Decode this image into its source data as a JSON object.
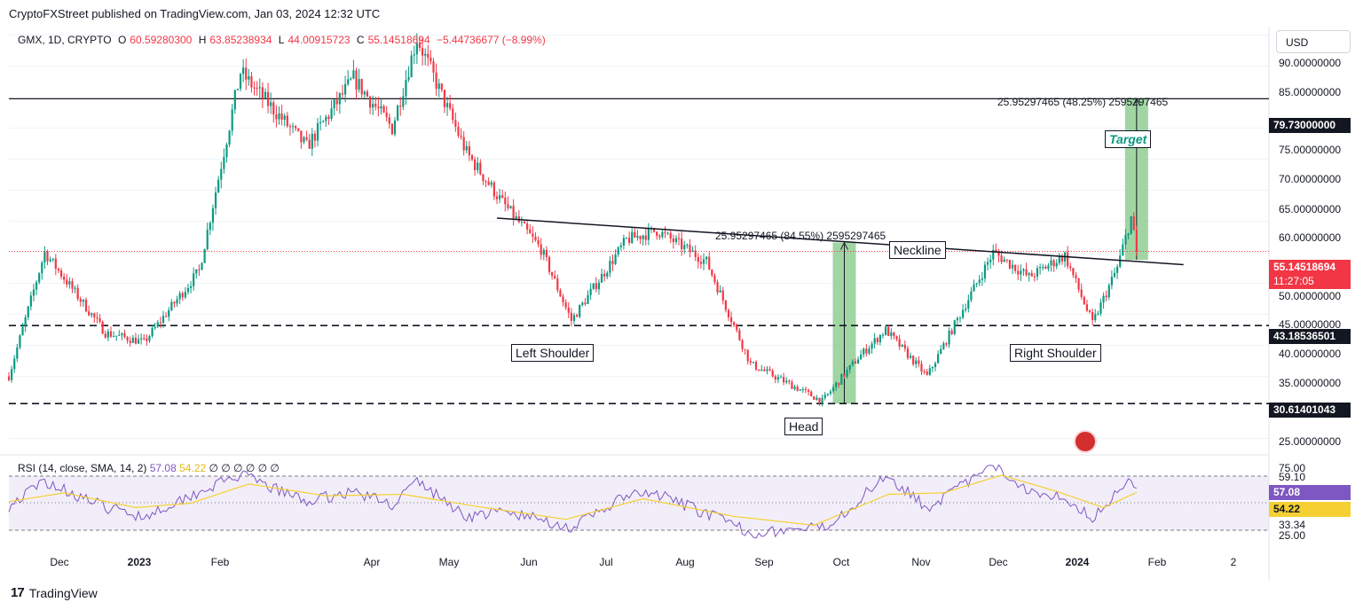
{
  "publisher": "CryptoFXStreet published on TradingView.com, Jan 03, 2024 12:32 UTC",
  "symbol": "GMX, 1D, CRYPTO",
  "ohlc": {
    "o_label": "O",
    "o": "60.59280300",
    "h_label": "H",
    "h": "63.85238934",
    "l_label": "L",
    "l": "44.00915723",
    "c_label": "C",
    "c": "55.14518694",
    "change": "−5.44736677 (−8.99%)"
  },
  "currency": "USD",
  "rsi_legend": {
    "label": "RSI (14, close, SMA, 14, 2)",
    "rsi": "57.08",
    "sma": "54.22",
    "zeros": "∅ ∅ ∅ ∅ ∅ ∅"
  },
  "price_axis": [
    "90.00000000",
    "85.00000000",
    "75.00000000",
    "70.00000000",
    "65.00000000",
    "60.00000000",
    "50.00000000",
    "45.00000000",
    "40.00000000",
    "35.00000000",
    "25.00000000"
  ],
  "price_tags": {
    "target": "79.73000000",
    "last": "55.14518694",
    "countdown": "11:27:05",
    "support_upper": "43.18536501",
    "support_lower": "30.61401043"
  },
  "rsi_axis": [
    "75.00",
    "59.10",
    "33.34",
    "25.00"
  ],
  "rsi_tags": {
    "rsi": "57.08",
    "sma": "54.22"
  },
  "time_axis": [
    {
      "label": "Dec",
      "bold": false
    },
    {
      "label": "2023",
      "bold": true
    },
    {
      "label": "Feb",
      "bold": false
    },
    {
      "label": "Apr",
      "bold": false
    },
    {
      "label": "May",
      "bold": false
    },
    {
      "label": "Jun",
      "bold": false
    },
    {
      "label": "Jul",
      "bold": false
    },
    {
      "label": "Aug",
      "bold": false
    },
    {
      "label": "Sep",
      "bold": false
    },
    {
      "label": "Oct",
      "bold": false
    },
    {
      "label": "Nov",
      "bold": false
    },
    {
      "label": "Dec",
      "bold": false
    },
    {
      "label": "2024",
      "bold": true
    },
    {
      "label": "Feb",
      "bold": false
    },
    {
      "label": "2",
      "bold": false
    }
  ],
  "annotations": {
    "neckline": "Neckline",
    "left_shoulder": "Left Shoulder",
    "head": "Head",
    "right_shoulder": "Right Shoulder",
    "target": "Target",
    "measure_head": "25.95297465 (84.55%) 2595297465",
    "measure_target": "25.95297465 (48.25%) 2595297465"
  },
  "footer": {
    "brand": "TradingView",
    "logo": "17"
  },
  "colors": {
    "up": "#089981",
    "down": "#f23645",
    "rsi": "#7e57c2",
    "sma": "#f5d033",
    "projection": "#81c784"
  },
  "chart_data": [
    {
      "type": "candlestick",
      "title": "GMX, 1D, CRYPTO",
      "x_range": [
        "2022-11-20",
        "2024-02-20"
      ],
      "y_range": [
        22.5,
        92.5
      ],
      "levels": [
        {
          "price": 79.73,
          "style": "solid"
        },
        {
          "price": 43.18536501,
          "style": "dashed"
        },
        {
          "price": 30.61401043,
          "style": "dashed"
        }
      ],
      "neckline": {
        "from": [
          "2023-05-16",
          60.5
        ],
        "to": [
          "2024-01-20",
          53.0
        ]
      },
      "measured_moves": [
        {
          "from_date": "2023-09-19",
          "low": 30.61,
          "high": 56.56,
          "change": 25.95297465,
          "percent": 84.55
        },
        {
          "from_date": "2024-01-03",
          "low": 53.78,
          "high": 79.73,
          "change": 25.95297465,
          "percent": 48.25
        }
      ],
      "key_points": [
        {
          "date": "2022-11-20",
          "close": 35.0
        },
        {
          "date": "2022-12-03",
          "close": 55.0
        },
        {
          "date": "2022-12-25",
          "close": 42.0
        },
        {
          "date": "2023-01-08",
          "close": 40.5
        },
        {
          "date": "2023-01-28",
          "close": 52.0
        },
        {
          "date": "2023-02-12",
          "close": 84.0
        },
        {
          "date": "2023-03-08",
          "close": 72.0
        },
        {
          "date": "2023-03-25",
          "close": 83.0
        },
        {
          "date": "2023-04-08",
          "close": 75.0
        },
        {
          "date": "2023-04-17",
          "close": 89.5
        },
        {
          "date": "2023-05-05",
          "close": 71.0
        },
        {
          "date": "2023-05-18",
          "close": 63.0
        },
        {
          "date": "2023-06-01",
          "close": 55.5
        },
        {
          "date": "2023-06-12",
          "close": 44.0
        },
        {
          "date": "2023-07-02",
          "close": 57.0
        },
        {
          "date": "2023-07-13",
          "close": 58.5
        },
        {
          "date": "2023-07-31",
          "close": 53.5
        },
        {
          "date": "2023-08-16",
          "close": 37.0
        },
        {
          "date": "2023-09-11",
          "close": 31.0
        },
        {
          "date": "2023-09-24",
          "close": 38.0
        },
        {
          "date": "2023-10-04",
          "close": 42.5
        },
        {
          "date": "2023-10-19",
          "close": 35.0
        },
        {
          "date": "2023-11-12",
          "close": 55.0
        },
        {
          "date": "2023-11-25",
          "close": 51.0
        },
        {
          "date": "2023-12-08",
          "close": 54.5
        },
        {
          "date": "2023-12-18",
          "close": 43.5
        },
        {
          "date": "2023-12-27",
          "close": 52.5
        },
        {
          "date": "2024-01-01",
          "close": 60.6
        },
        {
          "date": "2024-01-03",
          "close": 55.15
        }
      ]
    },
    {
      "type": "line",
      "title": "RSI (14, close, SMA, 14, 2)",
      "y_range": [
        25,
        75
      ],
      "band": [
        33.34,
        59.1
      ],
      "series": [
        {
          "name": "RSI",
          "key_points": [
            {
              "date": "2022-11-20",
              "value": 45
            },
            {
              "date": "2022-12-03",
              "value": 62
            },
            {
              "date": "2022-12-25",
              "value": 44
            },
            {
              "date": "2023-01-08",
              "value": 38
            },
            {
              "date": "2023-01-28",
              "value": 55
            },
            {
              "date": "2023-02-12",
              "value": 66
            },
            {
              "date": "2023-03-08",
              "value": 48
            },
            {
              "date": "2023-03-25",
              "value": 55
            },
            {
              "date": "2023-04-08",
              "value": 46
            },
            {
              "date": "2023-04-17",
              "value": 62
            },
            {
              "date": "2023-05-05",
              "value": 38
            },
            {
              "date": "2023-05-18",
              "value": 41
            },
            {
              "date": "2023-06-01",
              "value": 36
            },
            {
              "date": "2023-06-12",
              "value": 30
            },
            {
              "date": "2023-07-02",
              "value": 52
            },
            {
              "date": "2023-07-13",
              "value": 53
            },
            {
              "date": "2023-07-31",
              "value": 40
            },
            {
              "date": "2023-08-16",
              "value": 27
            },
            {
              "date": "2023-09-11",
              "value": 30
            },
            {
              "date": "2023-09-24",
              "value": 48
            },
            {
              "date": "2023-10-04",
              "value": 67
            },
            {
              "date": "2023-10-19",
              "value": 44
            },
            {
              "date": "2023-11-12",
              "value": 72
            },
            {
              "date": "2023-11-25",
              "value": 56
            },
            {
              "date": "2023-12-08",
              "value": 51
            },
            {
              "date": "2023-12-18",
              "value": 37
            },
            {
              "date": "2023-12-27",
              "value": 54
            },
            {
              "date": "2024-01-01",
              "value": 66
            },
            {
              "date": "2024-01-03",
              "value": 57.08
            }
          ]
        },
        {
          "name": "SMA",
          "key_points": [
            {
              "date": "2022-11-20",
              "value": 48
            },
            {
              "date": "2022-12-10",
              "value": 54
            },
            {
              "date": "2023-01-05",
              "value": 44
            },
            {
              "date": "2023-01-25",
              "value": 47
            },
            {
              "date": "2023-02-15",
              "value": 60
            },
            {
              "date": "2023-03-15",
              "value": 52
            },
            {
              "date": "2023-04-12",
              "value": 53
            },
            {
              "date": "2023-05-08",
              "value": 45
            },
            {
              "date": "2023-06-10",
              "value": 36
            },
            {
              "date": "2023-07-08",
              "value": 50
            },
            {
              "date": "2023-08-10",
              "value": 38
            },
            {
              "date": "2023-09-08",
              "value": 32
            },
            {
              "date": "2023-10-05",
              "value": 53
            },
            {
              "date": "2023-10-25",
              "value": 54
            },
            {
              "date": "2023-11-15",
              "value": 66
            },
            {
              "date": "2023-12-05",
              "value": 55
            },
            {
              "date": "2023-12-22",
              "value": 44
            },
            {
              "date": "2024-01-03",
              "value": 54.22
            }
          ]
        }
      ]
    }
  ]
}
